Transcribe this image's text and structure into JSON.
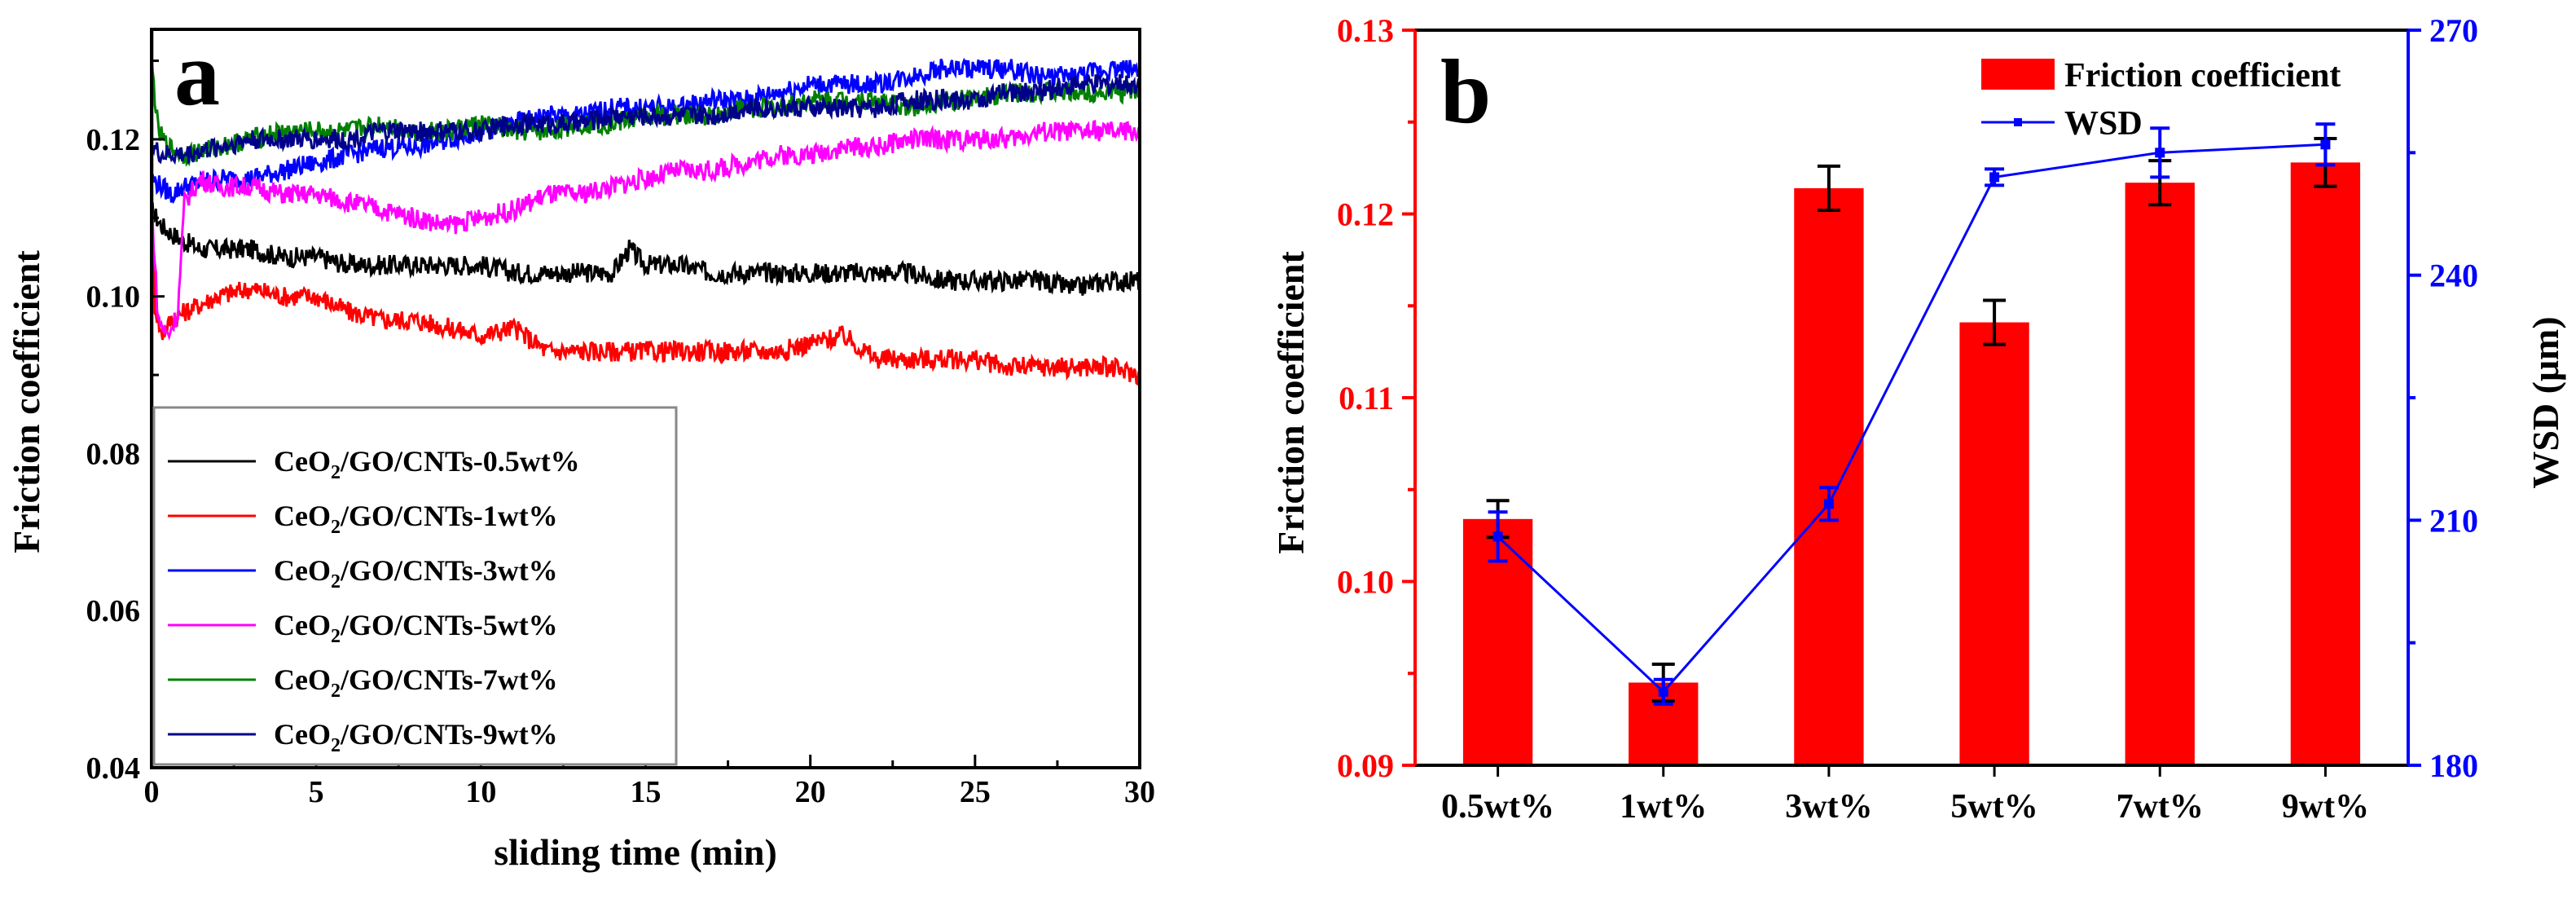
{
  "figure": {
    "panels": [
      "a",
      "b"
    ]
  },
  "chart_data": [
    {
      "panel": "a",
      "type": "line",
      "title": "",
      "xlabel": "sliding time (min)",
      "ylabel": "Friction coefficient",
      "xlim": [
        0,
        30
      ],
      "ylim": [
        0.04,
        0.134
      ],
      "x_ticks": [
        0,
        5,
        10,
        15,
        20,
        25,
        30
      ],
      "y_ticks": [
        0.04,
        0.06,
        0.08,
        0.1,
        0.12
      ],
      "x_tick_labels": [
        "0",
        "5",
        "10",
        "15",
        "20",
        "25",
        "30"
      ],
      "y_tick_labels": [
        "0.04",
        "0.06",
        "0.08",
        "0.10",
        "0.12"
      ],
      "legend_position": "bottom-left",
      "series": [
        {
          "name": "CeO2/GO/CNTs-0.5wt%",
          "label_prefix": "CeO",
          "label_sub": "2",
          "label_suffix": "/GO/CNTs-0.5wt%",
          "color": "#000000",
          "x": [
            0,
            0.3,
            0.6,
            1,
            1.5,
            2,
            3,
            4,
            5,
            6,
            7,
            8,
            9,
            10,
            11,
            12,
            13,
            14,
            14.5,
            15,
            16,
            17,
            18,
            19,
            20,
            21,
            22,
            23,
            24,
            25,
            26,
            27,
            28,
            29,
            30
          ],
          "y": [
            0.111,
            0.109,
            0.108,
            0.107,
            0.106,
            0.106,
            0.106,
            0.105,
            0.105,
            0.104,
            0.104,
            0.104,
            0.104,
            0.104,
            0.103,
            0.103,
            0.103,
            0.103,
            0.106,
            0.104,
            0.104,
            0.103,
            0.103,
            0.103,
            0.103,
            0.103,
            0.103,
            0.103,
            0.102,
            0.102,
            0.102,
            0.102,
            0.101,
            0.102,
            0.102
          ]
        },
        {
          "name": "CeO2/GO/CNTs-1wt%",
          "label_prefix": "CeO",
          "label_sub": "2",
          "label_suffix": "/GO/CNTs-1wt%",
          "color": "#ff0000",
          "x": [
            0,
            0.1,
            0.3,
            0.6,
            1,
            1.5,
            2,
            3,
            4,
            5,
            6,
            7,
            8,
            9,
            10,
            11,
            12,
            13,
            14,
            15,
            16,
            17,
            18,
            19,
            20,
            21,
            22,
            23,
            24,
            25,
            26,
            27,
            28,
            29,
            30
          ],
          "y": [
            0.113,
            0.099,
            0.095,
            0.097,
            0.098,
            0.099,
            0.1,
            0.101,
            0.1,
            0.1,
            0.098,
            0.097,
            0.097,
            0.096,
            0.095,
            0.096,
            0.093,
            0.093,
            0.093,
            0.093,
            0.093,
            0.093,
            0.093,
            0.093,
            0.094,
            0.095,
            0.092,
            0.092,
            0.092,
            0.092,
            0.091,
            0.091,
            0.091,
            0.091,
            0.09
          ]
        },
        {
          "name": "CeO2/GO/CNTs-3wt%",
          "label_prefix": "CeO",
          "label_sub": "2",
          "label_suffix": "/GO/CNTs-3wt%",
          "color": "#0000ff",
          "x": [
            0,
            0.3,
            0.6,
            1,
            2,
            3,
            4,
            5,
            6,
            7,
            8,
            9,
            10,
            11,
            12,
            13,
            14,
            15,
            16,
            17,
            18,
            19,
            20,
            21,
            22,
            23,
            24,
            25,
            26,
            27,
            28,
            29,
            30
          ],
          "y": [
            0.115,
            0.114,
            0.113,
            0.114,
            0.115,
            0.115,
            0.116,
            0.117,
            0.118,
            0.119,
            0.119,
            0.12,
            0.121,
            0.122,
            0.123,
            0.123,
            0.124,
            0.124,
            0.124,
            0.125,
            0.125,
            0.126,
            0.127,
            0.127,
            0.127,
            0.128,
            0.129,
            0.129,
            0.129,
            0.128,
            0.128,
            0.129,
            0.129
          ]
        },
        {
          "name": "CeO2/GO/CNTs-5wt%",
          "label_prefix": "CeO",
          "label_sub": "2",
          "label_suffix": "/GO/CNTs-5wt%",
          "color": "#ff00ff",
          "x": [
            0,
            0.2,
            0.5,
            0.8,
            1,
            1.5,
            2,
            3,
            4,
            5,
            6,
            7,
            8,
            9,
            10,
            11,
            12,
            13,
            14,
            15,
            16,
            17,
            18,
            19,
            20,
            21,
            22,
            23,
            24,
            25,
            26,
            27,
            28,
            29,
            30
          ],
          "y": [
            0.112,
            0.097,
            0.095,
            0.098,
            0.112,
            0.115,
            0.114,
            0.114,
            0.113,
            0.113,
            0.112,
            0.111,
            0.11,
            0.109,
            0.11,
            0.111,
            0.113,
            0.113,
            0.114,
            0.115,
            0.116,
            0.116,
            0.117,
            0.118,
            0.118,
            0.119,
            0.119,
            0.12,
            0.12,
            0.12,
            0.12,
            0.121,
            0.121,
            0.121,
            0.121
          ]
        },
        {
          "name": "CeO2/GO/CNTs-7wt%",
          "label_prefix": "CeO",
          "label_sub": "2",
          "label_suffix": "/GO/CNTs-7wt%",
          "color": "#008000",
          "x": [
            0,
            0.2,
            0.5,
            1,
            2,
            3,
            4,
            5,
            6,
            7,
            8,
            9,
            10,
            11,
            12,
            13,
            14,
            15,
            16,
            17,
            18,
            19,
            20,
            21,
            22,
            23,
            24,
            25,
            26,
            27,
            28,
            29,
            30
          ],
          "y": [
            0.13,
            0.121,
            0.119,
            0.118,
            0.119,
            0.12,
            0.121,
            0.121,
            0.121,
            0.122,
            0.121,
            0.121,
            0.122,
            0.121,
            0.121,
            0.122,
            0.122,
            0.123,
            0.123,
            0.123,
            0.124,
            0.124,
            0.125,
            0.125,
            0.125,
            0.124,
            0.125,
            0.125,
            0.126,
            0.126,
            0.126,
            0.126,
            0.126
          ]
        },
        {
          "name": "CeO2/GO/CNTs-9wt%",
          "label_prefix": "CeO",
          "label_sub": "2",
          "label_suffix": "/GO/CNTs-9wt%",
          "color": "#00008b",
          "x": [
            0,
            0.3,
            0.6,
            1,
            2,
            3,
            4,
            5,
            6,
            7,
            8,
            9,
            10,
            11,
            12,
            13,
            14,
            15,
            16,
            17,
            18,
            19,
            20,
            21,
            22,
            23,
            24,
            25,
            26,
            27,
            28,
            29,
            30
          ],
          "y": [
            0.119,
            0.118,
            0.118,
            0.118,
            0.119,
            0.12,
            0.12,
            0.12,
            0.12,
            0.121,
            0.121,
            0.121,
            0.121,
            0.122,
            0.122,
            0.122,
            0.123,
            0.123,
            0.123,
            0.123,
            0.124,
            0.124,
            0.124,
            0.124,
            0.124,
            0.125,
            0.125,
            0.125,
            0.126,
            0.126,
            0.127,
            0.127,
            0.127
          ]
        }
      ]
    },
    {
      "panel": "b",
      "type": "bar",
      "title": "",
      "xlabel": "",
      "ylabel": "Friction coefficient",
      "y2label": "WSD (μm)",
      "categories": [
        "0.5wt%",
        "1wt%",
        "3wt%",
        "5wt%",
        "7wt%",
        "9wt%"
      ],
      "ylim": [
        0.09,
        0.13
      ],
      "y2lim": [
        180,
        270
      ],
      "y_ticks": [
        0.09,
        0.1,
        0.11,
        0.12,
        0.13
      ],
      "y_tick_labels": [
        "0.09",
        "0.10",
        "0.11",
        "0.12",
        "0.13"
      ],
      "y2_ticks": [
        180,
        210,
        240,
        270
      ],
      "y2_tick_labels": [
        "180",
        "210",
        "240",
        "270"
      ],
      "legend_position": "top-right",
      "series": [
        {
          "name": "Friction coefficient",
          "axis": "left",
          "type": "bar",
          "color": "#ff0000",
          "values": [
            0.1034,
            0.0945,
            0.1214,
            0.1141,
            0.1217,
            0.1228
          ],
          "errors": [
            0.001,
            0.001,
            0.0012,
            0.0012,
            0.0012,
            0.0013
          ]
        },
        {
          "name": "WSD",
          "axis": "right",
          "type": "line",
          "color": "#0000ff",
          "values": [
            208,
            189,
            212,
            252,
            255,
            256
          ],
          "errors": [
            3,
            1.5,
            2,
            1,
            3,
            2.5
          ]
        }
      ],
      "colors": {
        "left_axis": "#ff0000",
        "right_axis": "#0000ff"
      }
    }
  ]
}
